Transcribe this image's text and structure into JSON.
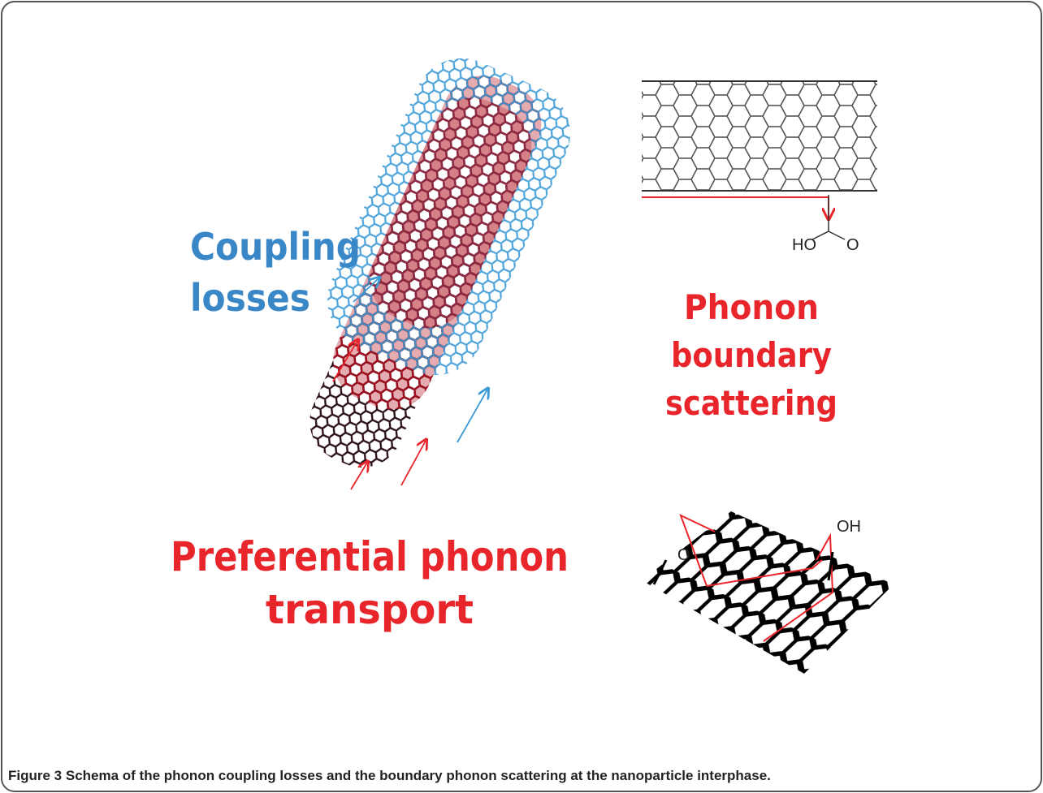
{
  "figure": {
    "coupling_label": [
      "Coupling",
      "losses"
    ],
    "boundary_label": [
      "Phonon",
      "boundary",
      "scattering"
    ],
    "transport_label": [
      "Preferential phonon",
      "transport"
    ],
    "tube_chem": [
      "HO",
      "O"
    ],
    "sheet_chem": [
      "O",
      "OH"
    ]
  },
  "caption": {
    "label": "Figure 3",
    "text": "Schema of the phonon coupling losses and the boundary phonon scattering at the nanoparticle interphase."
  }
}
